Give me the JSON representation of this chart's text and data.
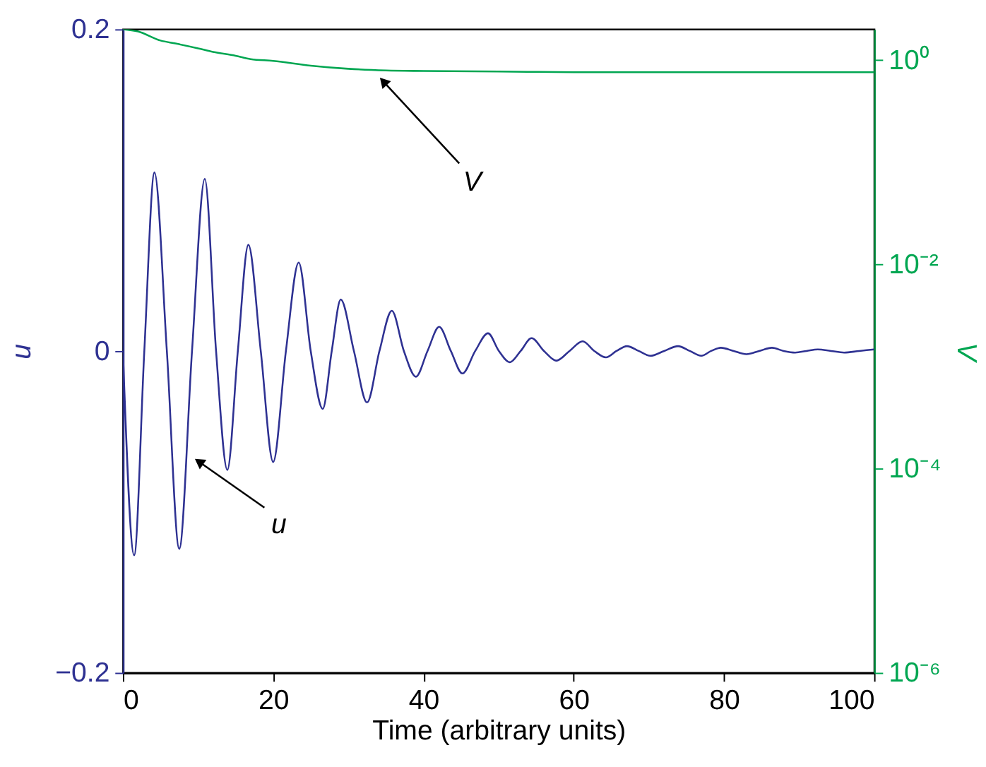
{
  "chart_data": {
    "type": "line",
    "xlabel": "Time (arbitrary units)",
    "ylabel": "u",
    "y2label": "V",
    "xlim": [
      0,
      100
    ],
    "xticks": [
      0,
      20,
      40,
      60,
      80,
      100
    ],
    "ylim": [
      -0.2,
      0.2
    ],
    "yticks": [
      {
        "value": -0.2,
        "label": "−0.2"
      },
      0,
      0.2
    ],
    "y2lim": [
      1e-06,
      2
    ],
    "y2ticks": [
      {
        "value": 1e-06,
        "label": "10⁻⁶"
      },
      {
        "value": 0.0001,
        "label": "10⁻⁴"
      },
      {
        "value": 0.01,
        "label": "10⁻²"
      },
      {
        "value": 1,
        "label": "10⁰"
      }
    ],
    "log": "y2",
    "grid": false,
    "marker": "none",
    "line_style": "solid",
    "series": [
      {
        "color": "#2e3192",
        "x": [
          0,
          1.5,
          2.85,
          4.2,
          5.85,
          7.5,
          9.2,
          10.9,
          12.4,
          13.9,
          15.3,
          16.7,
          18.35,
          20.0,
          21.7,
          23.4,
          25.0,
          26.6,
          27.8,
          29.0,
          30.75,
          32.5,
          34.15,
          35.8,
          37.4,
          39.0,
          40.55,
          42.1,
          43.65,
          45.2,
          46.9,
          48.6,
          50.05,
          51.5,
          52.95,
          54.4,
          56.05,
          57.7,
          59.45,
          61.2,
          62.75,
          64.3,
          65.7,
          67.1,
          68.65,
          70.2,
          72.05,
          73.9,
          75.45,
          77.0,
          78.3,
          79.6,
          81.3,
          83.0,
          84.7,
          86.4,
          87.95,
          89.5,
          91.0,
          92.5,
          94.25,
          96.0,
          98.0,
          100
        ],
        "values": [
          0,
          -0.127,
          0,
          0.111,
          0,
          -0.123,
          0,
          0.107,
          0,
          -0.074,
          0,
          0.066,
          0,
          -0.069,
          0,
          0.055,
          0,
          -0.036,
          0,
          0.032,
          0,
          -0.032,
          0,
          0.025,
          0,
          -0.016,
          0,
          0.015,
          0,
          -0.014,
          0,
          0.011,
          0,
          -0.007,
          0,
          0.008,
          0,
          -0.006,
          0,
          0.006,
          0,
          -0.004,
          0,
          0.003,
          0,
          -0.003,
          0,
          0.003,
          0,
          -0.003,
          0,
          0.002,
          0,
          -0.002,
          0,
          0.002,
          0,
          -0.001,
          0,
          0.001,
          0,
          -0.001,
          0,
          0.001
        ]
      },
      {
        "color": "#00a651",
        "axis": "y2",
        "x": [
          0,
          2,
          5,
          7,
          10,
          12,
          15,
          17,
          20,
          25,
          30,
          35,
          40,
          50,
          60,
          80,
          100
        ],
        "values": [
          2,
          1.9,
          1.55,
          1.45,
          1.3,
          1.2,
          1.1,
          1.02,
          0.98,
          0.88,
          0.82,
          0.79,
          0.78,
          0.77,
          0.76,
          0.76,
          0.76
        ]
      }
    ],
    "annotations": [
      "V",
      "u"
    ]
  }
}
